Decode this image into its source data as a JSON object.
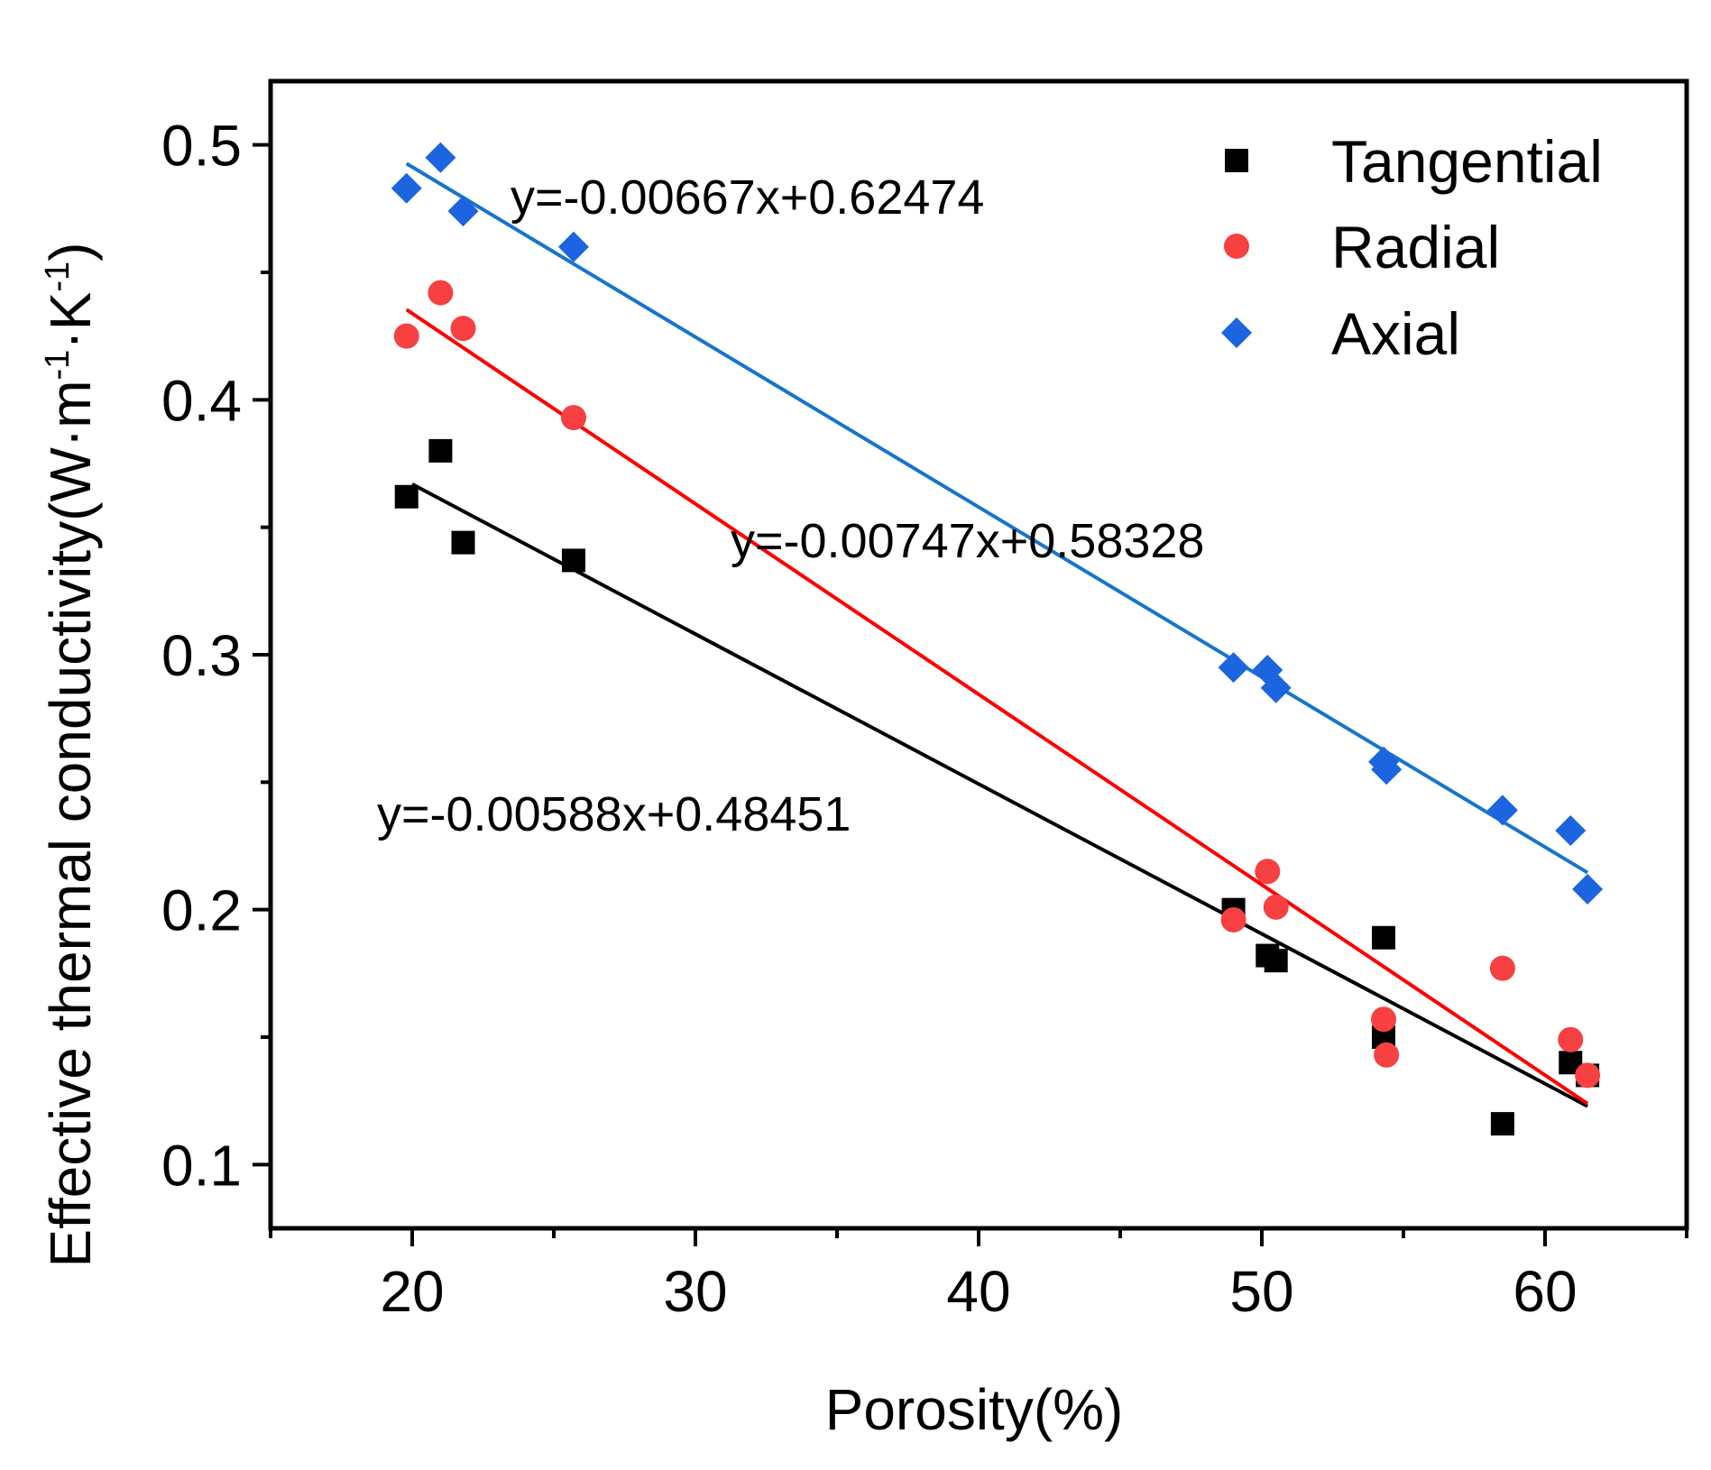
{
  "chart_data": {
    "type": "scatter",
    "title": "",
    "xlabel": "Porosity(%)",
    "ylabel": {
      "main": "Effective thermal conductivity(W·m",
      "sup1": "-1",
      "mid": "·K",
      "sup2": "-1",
      "end": ")"
    },
    "xlim": [
      15,
      65
    ],
    "ylim": [
      0.075,
      0.525
    ],
    "xticks": [
      20,
      30,
      40,
      50,
      60
    ],
    "xtick_labels": [
      "20",
      "30",
      "40",
      "50",
      "60"
    ],
    "xminor": [
      15,
      25,
      35,
      45,
      55,
      65
    ],
    "yticks": [
      0.1,
      0.2,
      0.3,
      0.4,
      0.5
    ],
    "ytick_labels": [
      "0.1",
      "0.2",
      "0.3",
      "0.4",
      "0.5"
    ],
    "yminor": [
      0.15,
      0.25,
      0.35,
      0.45
    ],
    "legend_position": "top-right",
    "series": [
      {
        "name": "Tangential",
        "marker": "square",
        "color": "#000000",
        "x": [
          19.8,
          21.0,
          21.8,
          25.7,
          49.0,
          50.2,
          50.5,
          54.3,
          54.3,
          58.5,
          60.9,
          61.5
        ],
        "y": [
          0.362,
          0.38,
          0.344,
          0.337,
          0.2,
          0.182,
          0.18,
          0.189,
          0.15,
          0.116,
          0.14,
          0.135
        ],
        "fit": {
          "slope": -0.00588,
          "intercept": 0.48451,
          "x_range": [
            20.0,
            61.5
          ],
          "label": "y=-0.00588x+0.48451"
        }
      },
      {
        "name": "Radial",
        "marker": "circle",
        "color": "#F64042",
        "line_color": "#FF0000",
        "x": [
          19.8,
          21.0,
          21.8,
          25.7,
          49.0,
          50.2,
          50.5,
          54.3,
          54.4,
          58.5,
          60.9,
          61.5
        ],
        "y": [
          0.425,
          0.442,
          0.428,
          0.393,
          0.196,
          0.215,
          0.201,
          0.157,
          0.143,
          0.177,
          0.149,
          0.135
        ],
        "fit": {
          "slope": -0.00747,
          "intercept": 0.58328,
          "x_range": [
            19.8,
            61.5
          ],
          "label": "y=-0.00747x+0.58328"
        }
      },
      {
        "name": "Axial",
        "marker": "diamond",
        "color": "#1C64E0",
        "line_color": "#1874CD",
        "x": [
          19.8,
          21.0,
          21.8,
          25.7,
          49.0,
          50.2,
          50.5,
          54.3,
          54.4,
          58.5,
          60.9,
          61.5
        ],
        "y": [
          0.483,
          0.495,
          0.474,
          0.46,
          0.295,
          0.294,
          0.287,
          0.258,
          0.255,
          0.239,
          0.231,
          0.208
        ],
        "fit": {
          "slope": -0.00667,
          "intercept": 0.62474,
          "x_range": [
            19.8,
            61.5
          ],
          "label": "y=-0.00667x+0.62474"
        }
      }
    ]
  }
}
